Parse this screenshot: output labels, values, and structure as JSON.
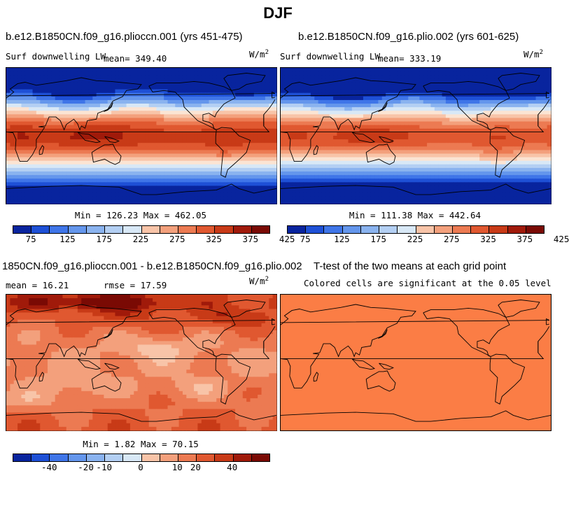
{
  "figure_title": "DJF",
  "chart_data": [
    {
      "type": "heatmap",
      "title": "b.e12.B1850CN.f09_g16.plioccn.001 (yrs 451-475)",
      "variable": "Surf downwelling LW",
      "mean_label": "mean=",
      "mean_value": "349.40",
      "units_base": "W/m",
      "units_exp": "2",
      "stats": "Min = 126.23 Max = 462.05",
      "colorbar_ticks": [
        "75",
        "125",
        "175",
        "225",
        "275",
        "325",
        "375",
        "425"
      ],
      "colorbar_levels": 14
    },
    {
      "type": "heatmap",
      "title": "b.e12.B1850CN.f09_g16.plio.002 (yrs 601-625)",
      "variable": "Surf downwelling LW",
      "mean_label": "mean=",
      "mean_value": "333.19",
      "units_base": "W/m",
      "units_exp": "2",
      "stats": "Min = 111.38 Max = 442.64",
      "colorbar_ticks": [
        "75",
        "125",
        "175",
        "225",
        "275",
        "325",
        "375",
        "425"
      ],
      "colorbar_levels": 14
    },
    {
      "type": "heatmap",
      "title": "1850CN.f09_g16.plioccn.001 - b.e12.B1850CN.f09_g16.plio.002",
      "mean_text": "mean =  16.21",
      "rmse_text": "rmse =  17.59",
      "units_base": "W/m",
      "units_exp": "2",
      "stats": "Min =  1.82 Max =  70.15",
      "colorbar_ticks": [
        "-40",
        "-20",
        "-10",
        "0",
        "10",
        "20",
        "40"
      ],
      "colorbar_levels": 14
    },
    {
      "type": "heatmap",
      "title": "T-test of the two means at each grid point",
      "subtitle": "Colored cells are significant at the 0.05 level"
    }
  ],
  "colors": {
    "scale": [
      "#08249e",
      "#1e50d6",
      "#3f75e8",
      "#6496ec",
      "#8ab3ef",
      "#b3cff3",
      "#d8e8f6",
      "#fbe4d3",
      "#f8c4a8",
      "#f3a07c",
      "#ec7a52",
      "#e05830",
      "#c83a17",
      "#a01a0a",
      "#7a0a04"
    ],
    "ttest": "#fb7d45"
  }
}
